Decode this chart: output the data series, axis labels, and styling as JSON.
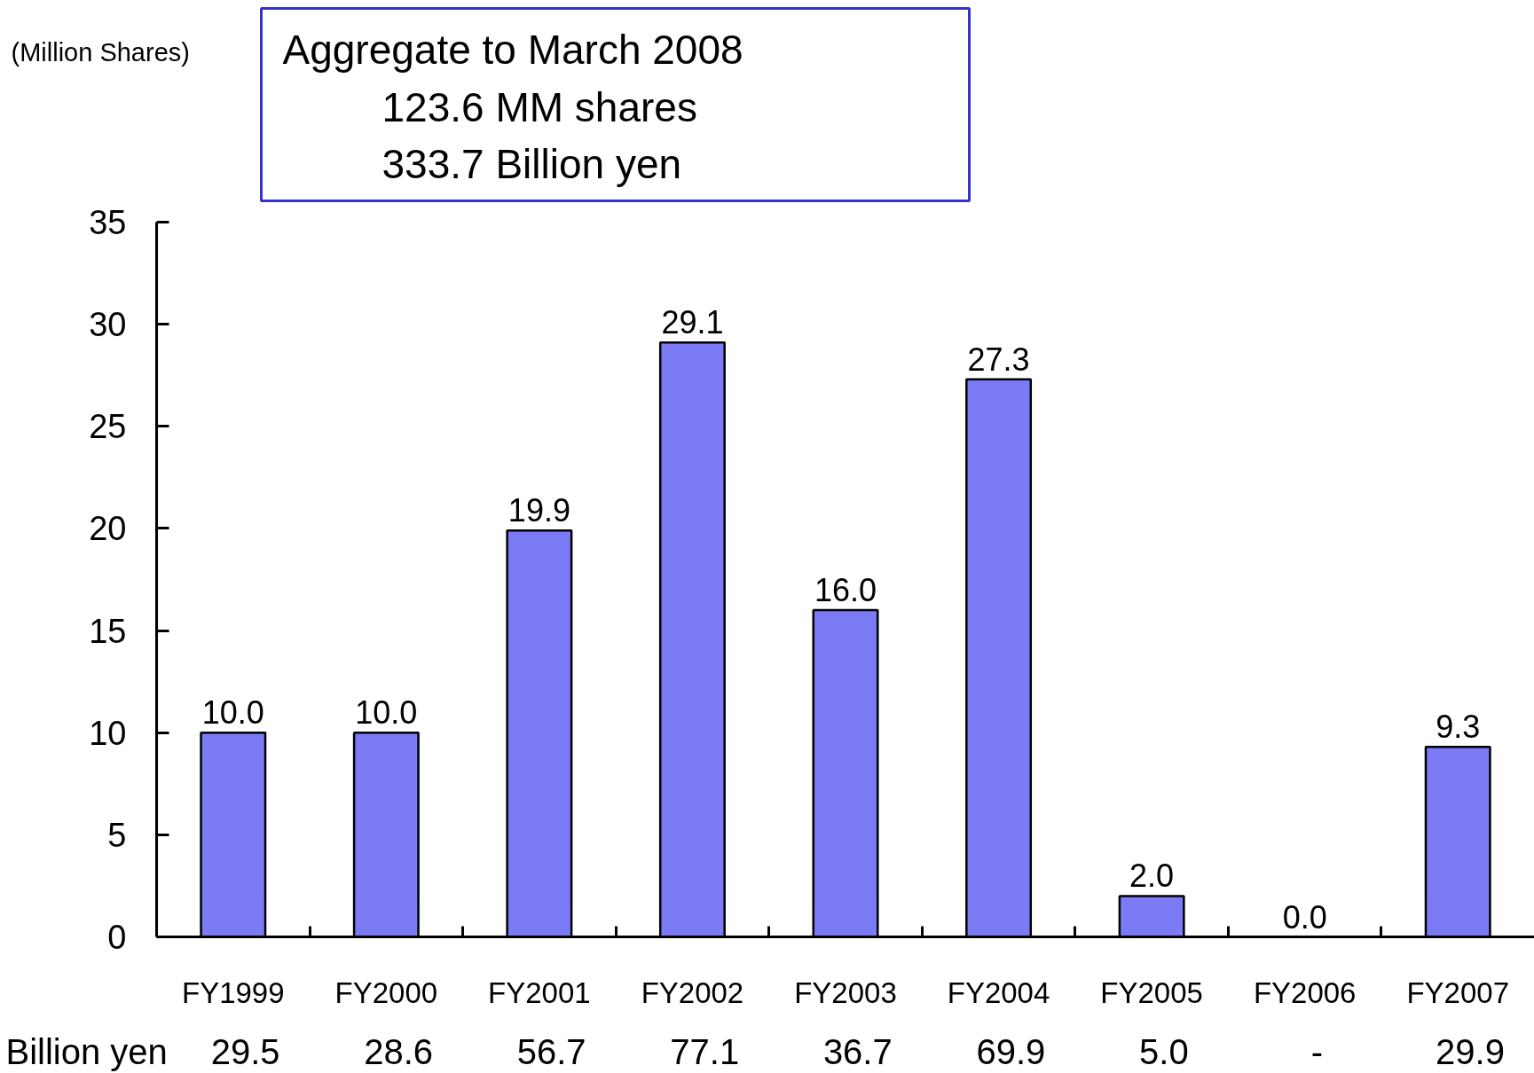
{
  "chart_data": {
    "type": "bar",
    "title": "Aggregate to March 2008",
    "categories": [
      "FY1999",
      "FY2000",
      "FY2001",
      "FY2002",
      "FY2003",
      "FY2004",
      "FY2005",
      "FY2006",
      "FY2007"
    ],
    "values": [
      10.0,
      10.0,
      19.9,
      29.1,
      16.0,
      27.3,
      2.0,
      0.0,
      9.3
    ],
    "value_labels": [
      "10.0",
      "10.0",
      "19.9",
      "29.1",
      "16.0",
      "27.3",
      "2.0",
      "0.0",
      "9.3"
    ],
    "color": "#7b7bf5",
    "ylim": [
      0,
      35
    ],
    "yticks": [
      0,
      5,
      10,
      15,
      20,
      25,
      30,
      35
    ],
    "annotations": [
      "(Million Shares)",
      "123.6  MM shares",
      "333.7  Billion yen",
      "Billion yen",
      "29.5",
      "28.6",
      "56.7",
      "77.1",
      "36.7",
      "69.9",
      "5.0",
      "-",
      "29.9"
    ]
  }
}
